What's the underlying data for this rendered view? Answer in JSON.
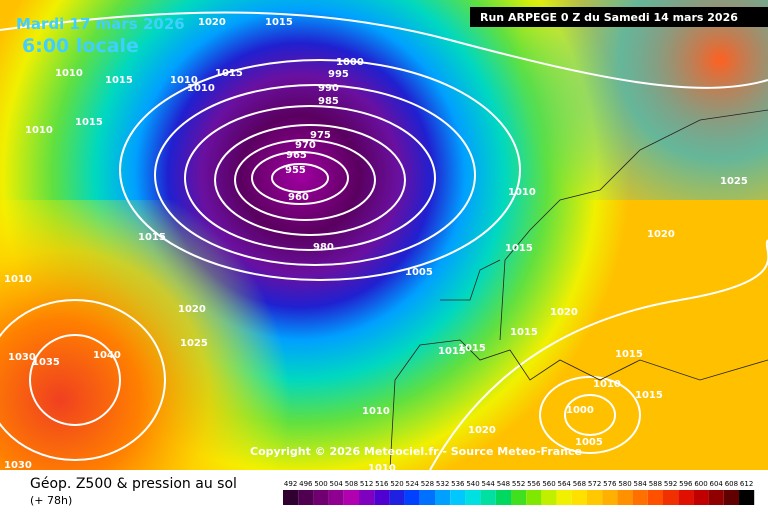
{
  "header": {
    "date": "Mardi 17 mars 2026",
    "time": "6:00 locale",
    "run": "Run ARPEGE 0 Z du Samedi 14 mars 2026"
  },
  "copyright": "Copyright © 2026 Meteociel.fr - Source Meteo-France",
  "footer": {
    "title": "Géop. Z500 & pression au sol",
    "lead": "(+ 78h)"
  },
  "isobar_labels": [
    "1020",
    "1015",
    "1010",
    "1015",
    "1010",
    "1015",
    "1010",
    "1015",
    "1010",
    "1000",
    "995",
    "990",
    "985",
    "975",
    "970",
    "965",
    "955",
    "960",
    "980",
    "1015",
    "1005",
    "1010",
    "1015",
    "1020",
    "1025",
    "1020",
    "1015",
    "1015",
    "1015",
    "1015",
    "1010",
    "1000",
    "1005",
    "1015",
    "1010",
    "1020",
    "1010",
    "1020",
    "1025",
    "1040",
    "1035",
    "1030",
    "1030",
    "1010"
  ],
  "scale": [
    492,
    496,
    500,
    504,
    508,
    512,
    516,
    520,
    524,
    528,
    532,
    536,
    540,
    544,
    548,
    552,
    556,
    560,
    564,
    568,
    572,
    576,
    580,
    584,
    588,
    592,
    596,
    600,
    604,
    608,
    612
  ]
}
